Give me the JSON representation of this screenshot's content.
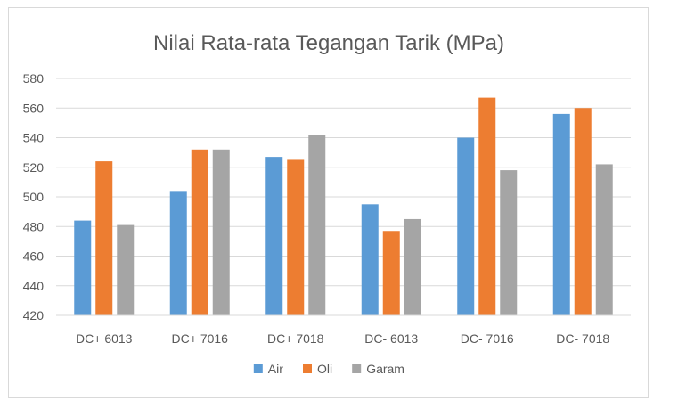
{
  "chart_data": {
    "type": "bar",
    "title": "Nilai Rata-rata Tegangan Tarik (MPa)",
    "xlabel": "",
    "ylabel": "",
    "categories": [
      "DC+ 6013",
      "DC+ 7016",
      "DC+ 7018",
      "DC- 6013",
      "DC- 7016",
      "DC- 7018"
    ],
    "series": [
      {
        "name": "Air",
        "color": "#5b9bd5",
        "values": [
          484,
          504,
          527,
          495,
          540,
          556
        ]
      },
      {
        "name": "Oli",
        "color": "#ed7d31",
        "values": [
          524,
          532,
          525,
          477,
          567,
          560
        ]
      },
      {
        "name": "Garam",
        "color": "#a5a5a5",
        "values": [
          481,
          532,
          542,
          485,
          518,
          522
        ]
      }
    ],
    "ylim": [
      420,
      580
    ],
    "yticks": [
      420,
      440,
      460,
      480,
      500,
      520,
      540,
      560,
      580
    ],
    "grid": true,
    "legend": "bottom"
  }
}
